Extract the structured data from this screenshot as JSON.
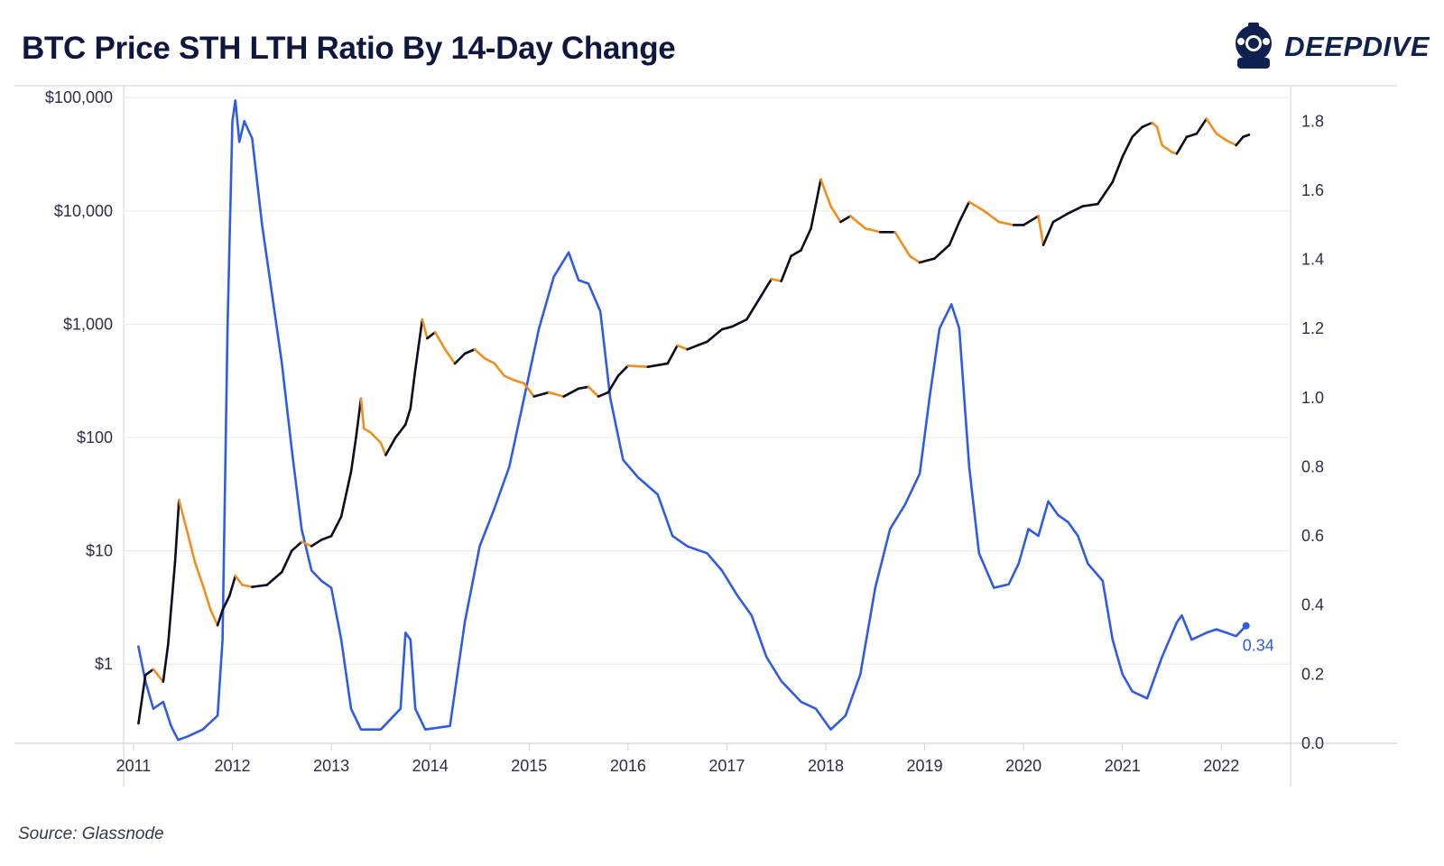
{
  "title": "BTC Price STH LTH Ratio By 14-Day Change",
  "brand": {
    "name": "DEEPDIVE",
    "logo_icon": "diver-helmet-icon"
  },
  "source": "Source: Glassnode",
  "colors": {
    "price_rising": "#0b0c1c",
    "price_falling": "#f28e1c",
    "ratio": "#2f5be6",
    "grid": "#e8e8ec",
    "axis_text": "#2b2f4a"
  },
  "chart_data": {
    "type": "line",
    "title": "BTC Price STH LTH Ratio By 14-Day Change",
    "x_ticks": [
      "2011",
      "2012",
      "2013",
      "2014",
      "2015",
      "2016",
      "2017",
      "2018",
      "2019",
      "2020",
      "2021",
      "2022"
    ],
    "xlim": [
      2010.9,
      2022.7
    ],
    "y_left": {
      "scale": "log",
      "lim": [
        0.2,
        125000
      ],
      "ticks": [
        1,
        10,
        100,
        1000,
        10000,
        100000
      ],
      "tick_labels": [
        "$1",
        "$10",
        "$100",
        "$1,000",
        "$10,000",
        "$100,000"
      ]
    },
    "y_right": {
      "scale": "linear",
      "lim": [
        0.0,
        1.9
      ],
      "ticks": [
        0.0,
        0.2,
        0.4,
        0.6,
        0.8,
        1.0,
        1.2,
        1.4,
        1.6,
        1.8
      ],
      "tick_labels": [
        "0.0",
        "0.2",
        "0.4",
        "0.6",
        "0.8",
        "1.0",
        "1.2",
        "1.4",
        "1.6",
        "1.8"
      ]
    },
    "series": [
      {
        "axis": "left",
        "color_rule": "black when rising over 14 days, orange when falling",
        "points": [
          [
            2011.05,
            0.3
          ],
          [
            2011.12,
            0.8
          ],
          [
            2011.2,
            0.9
          ],
          [
            2011.3,
            0.7
          ],
          [
            2011.35,
            1.5
          ],
          [
            2011.42,
            8
          ],
          [
            2011.46,
            28
          ],
          [
            2011.55,
            14
          ],
          [
            2011.62,
            8
          ],
          [
            2011.7,
            5
          ],
          [
            2011.78,
            3
          ],
          [
            2011.85,
            2.2
          ],
          [
            2011.9,
            3
          ],
          [
            2011.97,
            4
          ],
          [
            2012.03,
            6
          ],
          [
            2012.1,
            5
          ],
          [
            2012.2,
            4.8
          ],
          [
            2012.35,
            5
          ],
          [
            2012.5,
            6.5
          ],
          [
            2012.6,
            10
          ],
          [
            2012.7,
            12
          ],
          [
            2012.8,
            11
          ],
          [
            2012.9,
            12.5
          ],
          [
            2013.0,
            13.5
          ],
          [
            2013.1,
            20
          ],
          [
            2013.2,
            50
          ],
          [
            2013.25,
            100
          ],
          [
            2013.3,
            220
          ],
          [
            2013.33,
            120
          ],
          [
            2013.4,
            110
          ],
          [
            2013.5,
            90
          ],
          [
            2013.55,
            70
          ],
          [
            2013.65,
            100
          ],
          [
            2013.75,
            130
          ],
          [
            2013.8,
            180
          ],
          [
            2013.85,
            400
          ],
          [
            2013.92,
            1100
          ],
          [
            2013.97,
            750
          ],
          [
            2014.05,
            850
          ],
          [
            2014.15,
            600
          ],
          [
            2014.25,
            450
          ],
          [
            2014.35,
            550
          ],
          [
            2014.45,
            600
          ],
          [
            2014.55,
            500
          ],
          [
            2014.65,
            450
          ],
          [
            2014.75,
            350
          ],
          [
            2014.85,
            320
          ],
          [
            2014.95,
            300
          ],
          [
            2015.05,
            230
          ],
          [
            2015.2,
            250
          ],
          [
            2015.35,
            230
          ],
          [
            2015.5,
            270
          ],
          [
            2015.6,
            280
          ],
          [
            2015.7,
            230
          ],
          [
            2015.8,
            250
          ],
          [
            2015.9,
            350
          ],
          [
            2016.0,
            430
          ],
          [
            2016.2,
            420
          ],
          [
            2016.4,
            450
          ],
          [
            2016.5,
            650
          ],
          [
            2016.6,
            600
          ],
          [
            2016.8,
            700
          ],
          [
            2016.95,
            900
          ],
          [
            2017.05,
            950
          ],
          [
            2017.2,
            1100
          ],
          [
            2017.35,
            1800
          ],
          [
            2017.45,
            2500
          ],
          [
            2017.55,
            2400
          ],
          [
            2017.65,
            4000
          ],
          [
            2017.75,
            4500
          ],
          [
            2017.85,
            7000
          ],
          [
            2017.95,
            19000
          ],
          [
            2018.05,
            11000
          ],
          [
            2018.15,
            8000
          ],
          [
            2018.25,
            9000
          ],
          [
            2018.4,
            7000
          ],
          [
            2018.55,
            6500
          ],
          [
            2018.7,
            6500
          ],
          [
            2018.85,
            4000
          ],
          [
            2018.95,
            3500
          ],
          [
            2019.1,
            3800
          ],
          [
            2019.25,
            5000
          ],
          [
            2019.35,
            8000
          ],
          [
            2019.45,
            12000
          ],
          [
            2019.6,
            10000
          ],
          [
            2019.75,
            8000
          ],
          [
            2019.9,
            7500
          ],
          [
            2020.0,
            7500
          ],
          [
            2020.15,
            9000
          ],
          [
            2020.2,
            5000
          ],
          [
            2020.3,
            8000
          ],
          [
            2020.45,
            9500
          ],
          [
            2020.6,
            11000
          ],
          [
            2020.75,
            11500
          ],
          [
            2020.9,
            18000
          ],
          [
            2021.0,
            30000
          ],
          [
            2021.1,
            45000
          ],
          [
            2021.2,
            55000
          ],
          [
            2021.3,
            60000
          ],
          [
            2021.35,
            55000
          ],
          [
            2021.4,
            38000
          ],
          [
            2021.5,
            33000
          ],
          [
            2021.55,
            32000
          ],
          [
            2021.65,
            45000
          ],
          [
            2021.75,
            48000
          ],
          [
            2021.85,
            65000
          ],
          [
            2021.95,
            48000
          ],
          [
            2022.05,
            42000
          ],
          [
            2022.15,
            38000
          ],
          [
            2022.22,
            45000
          ],
          [
            2022.28,
            47000
          ]
        ]
      },
      {
        "axis": "right",
        "color": "#2f5be6",
        "end_label": "0.34",
        "points": [
          [
            2011.05,
            0.28
          ],
          [
            2011.12,
            0.18
          ],
          [
            2011.2,
            0.1
          ],
          [
            2011.3,
            0.12
          ],
          [
            2011.38,
            0.05
          ],
          [
            2011.45,
            0.01
          ],
          [
            2011.55,
            0.02
          ],
          [
            2011.7,
            0.04
          ],
          [
            2011.85,
            0.08
          ],
          [
            2011.9,
            0.3
          ],
          [
            2011.95,
            1.2
          ],
          [
            2012.0,
            1.8
          ],
          [
            2012.03,
            1.86
          ],
          [
            2012.07,
            1.74
          ],
          [
            2012.12,
            1.8
          ],
          [
            2012.2,
            1.75
          ],
          [
            2012.3,
            1.5
          ],
          [
            2012.4,
            1.3
          ],
          [
            2012.5,
            1.1
          ],
          [
            2012.6,
            0.85
          ],
          [
            2012.7,
            0.62
          ],
          [
            2012.8,
            0.5
          ],
          [
            2012.9,
            0.47
          ],
          [
            2013.0,
            0.45
          ],
          [
            2013.1,
            0.3
          ],
          [
            2013.2,
            0.1
          ],
          [
            2013.3,
            0.04
          ],
          [
            2013.5,
            0.04
          ],
          [
            2013.7,
            0.1
          ],
          [
            2013.75,
            0.32
          ],
          [
            2013.8,
            0.3
          ],
          [
            2013.85,
            0.1
          ],
          [
            2013.95,
            0.04
          ],
          [
            2014.2,
            0.05
          ],
          [
            2014.35,
            0.35
          ],
          [
            2014.5,
            0.57
          ],
          [
            2014.65,
            0.68
          ],
          [
            2014.8,
            0.8
          ],
          [
            2014.95,
            1.0
          ],
          [
            2015.1,
            1.2
          ],
          [
            2015.25,
            1.35
          ],
          [
            2015.4,
            1.42
          ],
          [
            2015.5,
            1.34
          ],
          [
            2015.6,
            1.33
          ],
          [
            2015.72,
            1.25
          ],
          [
            2015.82,
            1.0
          ],
          [
            2015.95,
            0.82
          ],
          [
            2016.1,
            0.77
          ],
          [
            2016.3,
            0.72
          ],
          [
            2016.45,
            0.6
          ],
          [
            2016.6,
            0.57
          ],
          [
            2016.8,
            0.55
          ],
          [
            2016.95,
            0.5
          ],
          [
            2017.1,
            0.43
          ],
          [
            2017.25,
            0.37
          ],
          [
            2017.4,
            0.25
          ],
          [
            2017.55,
            0.18
          ],
          [
            2017.75,
            0.12
          ],
          [
            2017.9,
            0.1
          ],
          [
            2018.05,
            0.04
          ],
          [
            2018.2,
            0.08
          ],
          [
            2018.35,
            0.2
          ],
          [
            2018.5,
            0.45
          ],
          [
            2018.65,
            0.62
          ],
          [
            2018.8,
            0.69
          ],
          [
            2018.95,
            0.78
          ],
          [
            2019.05,
            1.0
          ],
          [
            2019.15,
            1.2
          ],
          [
            2019.27,
            1.27
          ],
          [
            2019.35,
            1.2
          ],
          [
            2019.45,
            0.8
          ],
          [
            2019.55,
            0.55
          ],
          [
            2019.7,
            0.45
          ],
          [
            2019.85,
            0.46
          ],
          [
            2019.95,
            0.52
          ],
          [
            2020.05,
            0.62
          ],
          [
            2020.15,
            0.6
          ],
          [
            2020.25,
            0.7
          ],
          [
            2020.35,
            0.66
          ],
          [
            2020.45,
            0.64
          ],
          [
            2020.55,
            0.6
          ],
          [
            2020.65,
            0.52
          ],
          [
            2020.8,
            0.47
          ],
          [
            2020.9,
            0.3
          ],
          [
            2021.0,
            0.2
          ],
          [
            2021.1,
            0.15
          ],
          [
            2021.25,
            0.13
          ],
          [
            2021.4,
            0.25
          ],
          [
            2021.55,
            0.35
          ],
          [
            2021.6,
            0.37
          ],
          [
            2021.7,
            0.3
          ],
          [
            2021.85,
            0.32
          ],
          [
            2021.95,
            0.33
          ],
          [
            2022.05,
            0.32
          ],
          [
            2022.15,
            0.31
          ],
          [
            2022.25,
            0.34
          ]
        ]
      }
    ]
  }
}
